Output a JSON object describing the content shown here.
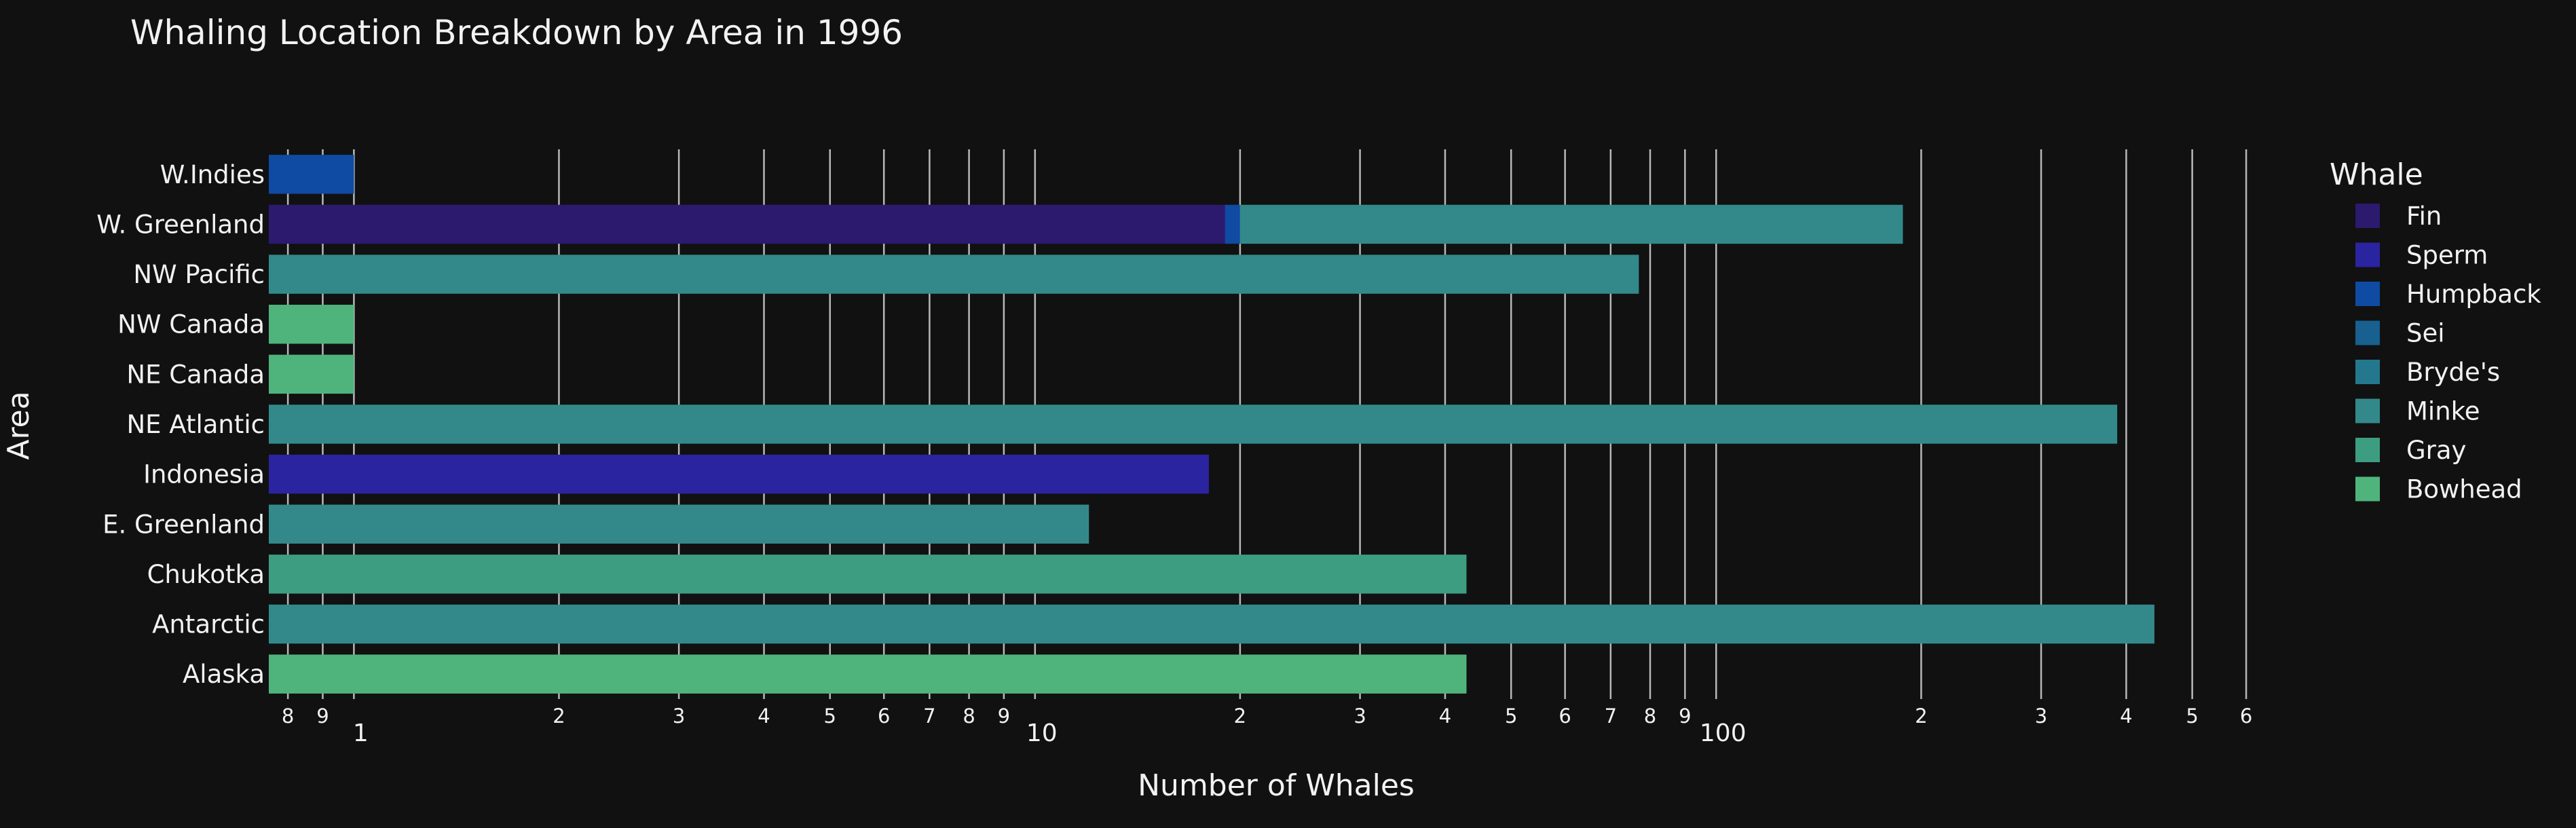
{
  "chart_data": {
    "type": "bar",
    "orientation": "horizontal",
    "barmode": "stack",
    "title": "Whaling Location Breakdown by Area in 1996",
    "xlabel": "Number of Whales",
    "ylabel": "Area",
    "x_scale": "log",
    "xlim": [
      0.75,
      690
    ],
    "grid": true,
    "legend_position": "right",
    "legend_title": "Whale",
    "x_ticks": [
      {
        "value": 0.8,
        "label": "8",
        "major": false
      },
      {
        "value": 0.9,
        "label": "9",
        "major": false
      },
      {
        "value": 1,
        "label": "1",
        "major": true
      },
      {
        "value": 2,
        "label": "2",
        "major": false
      },
      {
        "value": 3,
        "label": "3",
        "major": false
      },
      {
        "value": 4,
        "label": "4",
        "major": false
      },
      {
        "value": 5,
        "label": "5",
        "major": false
      },
      {
        "value": 6,
        "label": "6",
        "major": false
      },
      {
        "value": 7,
        "label": "7",
        "major": false
      },
      {
        "value": 8,
        "label": "8",
        "major": false
      },
      {
        "value": 9,
        "label": "9",
        "major": false
      },
      {
        "value": 10,
        "label": "10",
        "major": true
      },
      {
        "value": 20,
        "label": "2",
        "major": false
      },
      {
        "value": 30,
        "label": "3",
        "major": false
      },
      {
        "value": 40,
        "label": "4",
        "major": false
      },
      {
        "value": 50,
        "label": "5",
        "major": false
      },
      {
        "value": 60,
        "label": "6",
        "major": false
      },
      {
        "value": 70,
        "label": "7",
        "major": false
      },
      {
        "value": 80,
        "label": "8",
        "major": false
      },
      {
        "value": 90,
        "label": "9",
        "major": false
      },
      {
        "value": 100,
        "label": "100",
        "major": true
      },
      {
        "value": 200,
        "label": "2",
        "major": false
      },
      {
        "value": 300,
        "label": "3",
        "major": false
      },
      {
        "value": 400,
        "label": "4",
        "major": false
      },
      {
        "value": 500,
        "label": "5",
        "major": false
      },
      {
        "value": 600,
        "label": "6",
        "major": false
      }
    ],
    "categories": [
      "Alaska",
      "Antarctic",
      "Chukotka",
      "E. Greenland",
      "Indonesia",
      "NE Atlantic",
      "NE Canada",
      "NW Canada",
      "NW Pacific",
      "W. Greenland",
      "W.Indies"
    ],
    "series": [
      {
        "name": "Fin",
        "color": "#2b1a6e",
        "values": [
          0,
          0,
          0,
          0,
          0,
          0,
          0,
          0,
          0,
          19,
          0
        ]
      },
      {
        "name": "Sperm",
        "color": "#2a24a0",
        "values": [
          0,
          0,
          0,
          0,
          18,
          0,
          0,
          0,
          0,
          0,
          0
        ]
      },
      {
        "name": "Humpback",
        "color": "#0f4aa3",
        "values": [
          0,
          0,
          0,
          0,
          0,
          0,
          0,
          0,
          0,
          1,
          1
        ]
      },
      {
        "name": "Sei",
        "color": "#17608f",
        "values": [
          0,
          0,
          0,
          0,
          0,
          0,
          0,
          0,
          0,
          0,
          0
        ]
      },
      {
        "name": "Bryde's",
        "color": "#24788d",
        "values": [
          0,
          0,
          0,
          0,
          0,
          0,
          0,
          0,
          0,
          0,
          0
        ]
      },
      {
        "name": "Minke",
        "color": "#33898a",
        "values": [
          0,
          440,
          0,
          12,
          0,
          388,
          0,
          0,
          77,
          168,
          0
        ]
      },
      {
        "name": "Gray",
        "color": "#3d9d80",
        "values": [
          0,
          0,
          43,
          0,
          0,
          0,
          0,
          0,
          0,
          0,
          0
        ]
      },
      {
        "name": "Bowhead",
        "color": "#4fb47c",
        "values": [
          43,
          0,
          0,
          0,
          0,
          0,
          1,
          1,
          0,
          0,
          0
        ]
      }
    ]
  }
}
